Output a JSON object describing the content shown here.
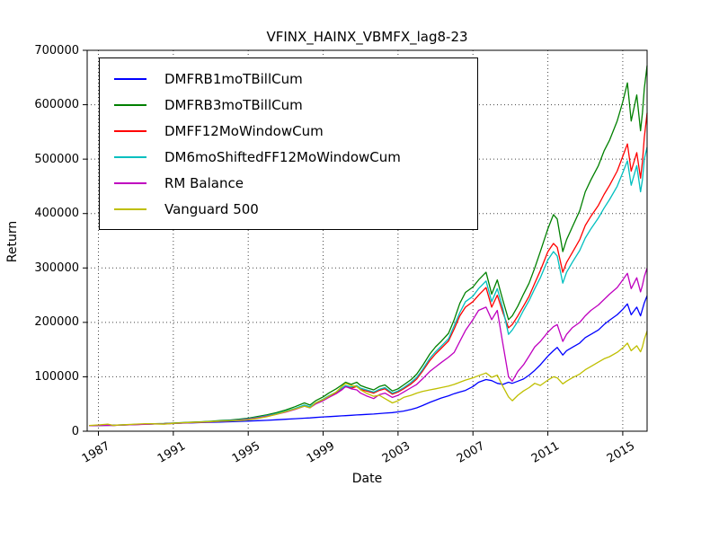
{
  "title": "VFINX_HAINX_VBMFX_lag8-23",
  "chart_data": {
    "type": "line",
    "title": "VFINX_HAINX_VBMFX_lag8-23",
    "xlabel": "Date",
    "ylabel": "Return",
    "xlim": [
      1986.4,
      2016.3
    ],
    "ylim": [
      0,
      700000
    ],
    "xticks": [
      1987,
      1991,
      1995,
      1999,
      2003,
      2007,
      2011,
      2015
    ],
    "yticks": [
      0,
      100000,
      200000,
      300000,
      400000,
      500000,
      600000,
      700000
    ],
    "grid": true,
    "grid_style": "dotted",
    "legend_position": "upper left",
    "x": [
      1986.5,
      1987,
      1987.5,
      1987.8,
      1988,
      1988.5,
      1989,
      1989.5,
      1990,
      1990.5,
      1991,
      1991.5,
      1992,
      1992.5,
      1993,
      1993.5,
      1994,
      1994.5,
      1995,
      1995.5,
      1996,
      1996.5,
      1997,
      1997.5,
      1998,
      1998.3,
      1998.6,
      1999,
      1999.3,
      1999.7,
      2000,
      2000.2,
      2000.5,
      2000.8,
      2001,
      2001.3,
      2001.7,
      2002,
      2002.3,
      2002.7,
      2003,
      2003.3,
      2003.7,
      2004,
      2004.3,
      2004.7,
      2005,
      2005.3,
      2005.7,
      2006,
      2006.3,
      2006.6,
      2007,
      2007.3,
      2007.7,
      2008,
      2008.3,
      2008.6,
      2008.9,
      2009.1,
      2009.4,
      2009.7,
      2010,
      2010.3,
      2010.6,
      2011,
      2011.3,
      2011.5,
      2011.8,
      2012,
      2012.3,
      2012.7,
      2013,
      2013.3,
      2013.7,
      2014,
      2014.3,
      2014.7,
      2015,
      2015.25,
      2015.45,
      2015.75,
      2015.95,
      2016.05,
      2016.15,
      2016.3
    ],
    "series": [
      {
        "name": "DMFRB1moTBillCum",
        "color": "#0000ff",
        "values": [
          10000,
          10400,
          10800,
          11000,
          11300,
          11800,
          12400,
          12900,
          13400,
          13900,
          14400,
          14900,
          15400,
          15900,
          16400,
          16900,
          17400,
          18000,
          18600,
          19300,
          20000,
          21000,
          22000,
          23000,
          24000,
          24500,
          25200,
          26200,
          26800,
          27600,
          28200,
          28600,
          29200,
          29800,
          30200,
          30800,
          31600,
          32400,
          33200,
          34200,
          35500,
          37000,
          40000,
          43000,
          47000,
          53000,
          57000,
          61000,
          65000,
          69000,
          72000,
          75000,
          82000,
          90000,
          95000,
          93000,
          88000,
          86000,
          90000,
          88000,
          92000,
          96000,
          103000,
          112000,
          122000,
          138000,
          148000,
          154000,
          140000,
          148000,
          154000,
          162000,
          172000,
          178000,
          186000,
          196000,
          204000,
          214000,
          224000,
          234000,
          214000,
          228000,
          212000,
          224000,
          236000,
          249000
        ]
      },
      {
        "name": "DMFRB3moTBillCum",
        "color": "#008000",
        "values": [
          10000,
          10600,
          11200,
          10800,
          11200,
          11800,
          12600,
          13200,
          13800,
          14200,
          15000,
          15800,
          16600,
          17400,
          18400,
          19500,
          20500,
          22000,
          24000,
          27000,
          30000,
          34000,
          39000,
          45000,
          52000,
          48000,
          56000,
          63000,
          70000,
          78000,
          85000,
          90000,
          86000,
          90000,
          84000,
          80000,
          76000,
          82000,
          85000,
          74000,
          78000,
          85000,
          95000,
          105000,
          120000,
          142000,
          155000,
          165000,
          180000,
          205000,
          235000,
          255000,
          265000,
          278000,
          292000,
          252000,
          278000,
          240000,
          205000,
          212000,
          230000,
          252000,
          272000,
          300000,
          330000,
          372000,
          398000,
          390000,
          330000,
          352000,
          375000,
          405000,
          440000,
          462000,
          488000,
          515000,
          535000,
          570000,
          605000,
          640000,
          570000,
          618000,
          552000,
          585000,
          630000,
          672000
        ]
      },
      {
        "name": "DMFF12MoWindowCum",
        "color": "#ff0000",
        "values": [
          10000,
          10500,
          11000,
          10600,
          11000,
          11500,
          12200,
          12800,
          13300,
          13700,
          14400,
          15100,
          15800,
          16500,
          17400,
          18300,
          19200,
          20500,
          22500,
          25000,
          28000,
          31500,
          36000,
          41000,
          47000,
          44000,
          51000,
          57000,
          63000,
          70000,
          77000,
          82000,
          79000,
          82000,
          77000,
          74000,
          70000,
          75000,
          78000,
          68000,
          72000,
          78000,
          87000,
          96000,
          110000,
          130000,
          142000,
          152000,
          166000,
          188000,
          212000,
          228000,
          238000,
          250000,
          264000,
          228000,
          250000,
          218000,
          190000,
          196000,
          212000,
          230000,
          248000,
          272000,
          295000,
          330000,
          345000,
          338000,
          292000,
          310000,
          328000,
          352000,
          378000,
          395000,
          415000,
          435000,
          452000,
          478000,
          505000,
          528000,
          478000,
          512000,
          465000,
          495000,
          540000,
          585000
        ]
      },
      {
        "name": "DM6moShiftedFF12MoWindowCum",
        "color": "#00bfbf",
        "values": [
          10000,
          10500,
          11000,
          10700,
          11100,
          11600,
          12300,
          12900,
          13400,
          13800,
          14500,
          15200,
          16000,
          16700,
          17600,
          18500,
          19500,
          20800,
          22800,
          25500,
          28500,
          32000,
          37000,
          42000,
          48000,
          45000,
          52000,
          59000,
          65000,
          72000,
          79000,
          84000,
          81000,
          84000,
          79000,
          76000,
          72000,
          77000,
          80000,
          70000,
          74000,
          80000,
          90000,
          99000,
          113000,
          134000,
          146000,
          156000,
          170000,
          194000,
          218000,
          238000,
          248000,
          262000,
          276000,
          238000,
          262000,
          225000,
          178000,
          186000,
          202000,
          222000,
          240000,
          262000,
          282000,
          315000,
          330000,
          322000,
          272000,
          292000,
          310000,
          332000,
          355000,
          372000,
          392000,
          410000,
          426000,
          450000,
          475000,
          497000,
          452000,
          488000,
          440000,
          462000,
          500000,
          522000
        ]
      },
      {
        "name": "RM Balance",
        "color": "#bf00bf",
        "values": [
          10000,
          10500,
          11000,
          10700,
          11000,
          11500,
          12200,
          12700,
          13200,
          13600,
          14300,
          15000,
          15700,
          16400,
          17200,
          18100,
          19000,
          20200,
          22000,
          24500,
          27500,
          31000,
          35000,
          40000,
          46000,
          43000,
          50000,
          56000,
          62000,
          69000,
          76000,
          82000,
          78000,
          76000,
          70000,
          65000,
          60000,
          67000,
          70000,
          62000,
          66000,
          72000,
          80000,
          86000,
          96000,
          110000,
          118000,
          126000,
          136000,
          145000,
          165000,
          185000,
          205000,
          222000,
          228000,
          205000,
          222000,
          160000,
          100000,
          92000,
          110000,
          122000,
          138000,
          155000,
          165000,
          182000,
          192000,
          196000,
          165000,
          178000,
          190000,
          200000,
          212000,
          222000,
          232000,
          242000,
          252000,
          264000,
          278000,
          290000,
          262000,
          282000,
          256000,
          268000,
          284000,
          300000
        ]
      },
      {
        "name": "Vanguard 500",
        "color": "#bfbf00",
        "values": [
          10500,
          11500,
          13000,
          10800,
          11300,
          12000,
          13000,
          13800,
          13500,
          12800,
          14500,
          15500,
          16200,
          16800,
          17600,
          18400,
          19000,
          19500,
          21000,
          23500,
          26500,
          31000,
          36000,
          41000,
          46000,
          43000,
          52000,
          58000,
          64000,
          72000,
          82000,
          88000,
          84000,
          82000,
          76000,
          70000,
          64000,
          66000,
          60000,
          52000,
          56000,
          62000,
          66000,
          70000,
          73000,
          76000,
          78000,
          80000,
          83000,
          86000,
          90000,
          94000,
          98000,
          102000,
          107000,
          99000,
          103000,
          82000,
          63000,
          56000,
          66000,
          74000,
          80000,
          88000,
          84000,
          94000,
          100000,
          98000,
          87000,
          92000,
          98000,
          105000,
          113000,
          119000,
          127000,
          133000,
          137000,
          145000,
          153000,
          162000,
          148000,
          157000,
          146000,
          155000,
          169000,
          184000
        ]
      }
    ]
  }
}
